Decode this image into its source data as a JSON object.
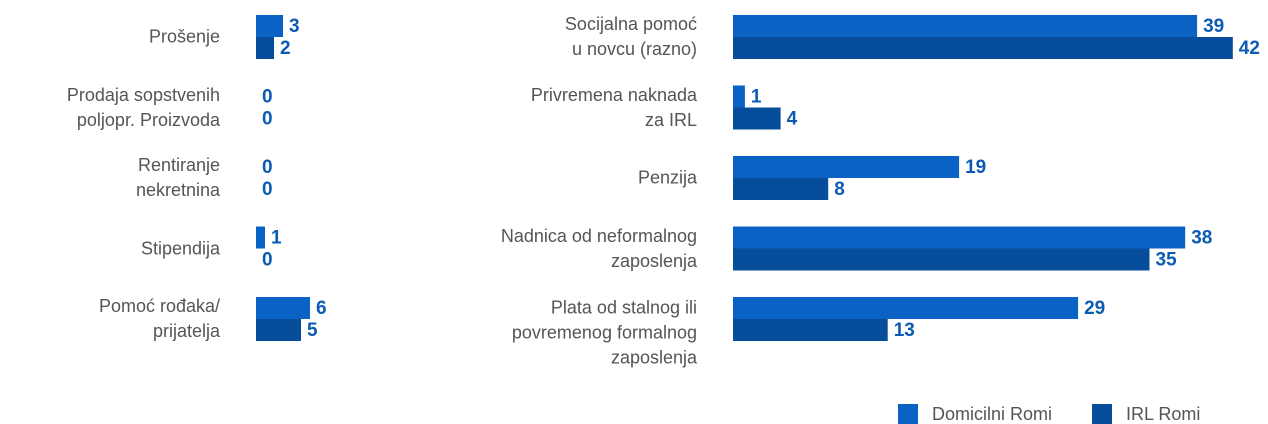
{
  "chart_data": [
    {
      "type": "bar",
      "orientation": "horizontal",
      "categories": [
        "Prošenje",
        "Prodaja sopstvenih\npoljopr. Proizvoda",
        "Rentiranje\nnekretnina",
        "Stipendija",
        "Pomoć rođaka/\nprijatelja"
      ],
      "series": [
        {
          "name": "Domicilni Romi",
          "color": "#0a63c4",
          "values": [
            3,
            0,
            0,
            1,
            6
          ]
        },
        {
          "name": "IRL Romi",
          "color": "#064d9b",
          "values": [
            2,
            0,
            0,
            0,
            5
          ]
        }
      ],
      "xlim": [
        0,
        50
      ]
    },
    {
      "type": "bar",
      "orientation": "horizontal",
      "categories": [
        "Socijalna pomoć\nu novcu (razno)",
        "Privremena naknada\nza IRL",
        "Penzija",
        "Nadnica od neformalnog\nzaposlenja",
        "Plata od stalnog ili\npovremenog formalnog\nzaposlenja"
      ],
      "series": [
        {
          "name": "Domicilni Romi",
          "color": "#0a63c4",
          "values": [
            39,
            1,
            19,
            38,
            29
          ]
        },
        {
          "name": "IRL Romi",
          "color": "#064d9b",
          "values": [
            42,
            4,
            8,
            35,
            13
          ]
        }
      ],
      "xlim": [
        0,
        45
      ],
      "legend": "bottom-right"
    }
  ]
}
